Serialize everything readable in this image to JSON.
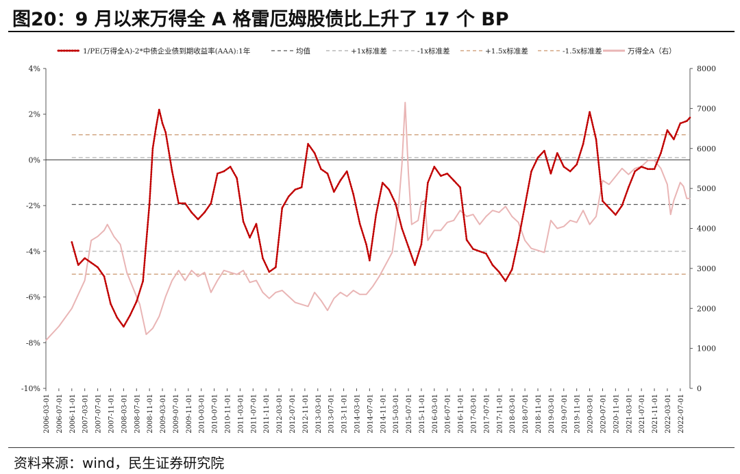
{
  "title": "图20：9 月以来万得全 A 格雷厄姆股债比上升了 17 个 BP",
  "source": "资料来源：wind，民生证券研究院",
  "chart_data": {
    "type": "line",
    "left_axis": {
      "min": -10,
      "max": 4,
      "step": 2,
      "unit": "%",
      "tick_labels": [
        "-10%",
        "-8%",
        "-6%",
        "-4%",
        "-2%",
        "0%",
        "2%",
        "4%"
      ]
    },
    "right_axis": {
      "min": 0,
      "max": 8000,
      "step": 1000,
      "tick_labels": [
        "0",
        "1000",
        "2000",
        "3000",
        "4000",
        "5000",
        "6000",
        "7000",
        "8000"
      ]
    },
    "x_range": [
      "2006-03",
      "2022-10"
    ],
    "x_tick_labels": [
      "2006-03-01",
      "2006-07-01",
      "2006-11-01",
      "2007-03-01",
      "2007-07-01",
      "2007-11-01",
      "2008-03-01",
      "2008-07-01",
      "2008-11-01",
      "2009-03-01",
      "2009-07-01",
      "2009-11-01",
      "2010-03-01",
      "2010-07-01",
      "2010-11-01",
      "2011-03-01",
      "2011-07-01",
      "2011-11-01",
      "2012-03-01",
      "2012-07-01",
      "2012-11-01",
      "2013-03-01",
      "2013-07-01",
      "2013-11-01",
      "2014-03-01",
      "2014-07-01",
      "2014-11-01",
      "2015-03-01",
      "2015-07-01",
      "2015-11-01",
      "2016-03-01",
      "2016-07-01",
      "2016-11-01",
      "2017-03-01",
      "2017-07-01",
      "2017-11-01",
      "2018-03-01",
      "2018-07-01",
      "2018-11-01",
      "2019-03-01",
      "2019-07-01",
      "2019-11-01",
      "2020-03-01",
      "2020-07-01",
      "2020-11-01",
      "2021-03-01",
      "2021-07-01",
      "2021-11-01",
      "2022-03-01",
      "2022-07-01"
    ],
    "legend": [
      {
        "label": "1/PE(万得全A)-2*中债企业债到期收益率(AAA):1年",
        "color": "#C00000",
        "style": "dotted"
      },
      {
        "label": "均值",
        "color": "#555555",
        "style": "dashed"
      },
      {
        "label": "+1x标准差",
        "color": "#A9A9A9",
        "style": "dashed"
      },
      {
        "label": "-1x标准差",
        "color": "#A9A9A9",
        "style": "dashed"
      },
      {
        "label": "+1.5x标准差",
        "color": "#C9956B",
        "style": "dashed"
      },
      {
        "label": "-1.5x标准差",
        "color": "#C9956B",
        "style": "dashed"
      },
      {
        "label": "万得全A（右）",
        "color": "#E9B5B5",
        "style": "solid"
      }
    ],
    "reference_lines": {
      "mean": -1.95,
      "plus_1sd": 0.1,
      "minus_1sd": -4.0,
      "plus_1_5sd": 1.1,
      "minus_1_5sd": -5.0
    },
    "series": [
      {
        "name": "1/PE(万得全A)-2*中债企业债到期收益率(AAA):1年",
        "axis": "left",
        "color": "#C00000",
        "points": [
          [
            "2006-11-01",
            -3.6
          ],
          [
            "2007-01-01",
            -4.6
          ],
          [
            "2007-03-01",
            -4.3
          ],
          [
            "2007-05-01",
            -4.5
          ],
          [
            "2007-07-01",
            -4.7
          ],
          [
            "2007-09-01",
            -5.1
          ],
          [
            "2007-11-01",
            -6.3
          ],
          [
            "2008-01-01",
            -6.9
          ],
          [
            "2008-03-01",
            -7.3
          ],
          [
            "2008-05-01",
            -6.8
          ],
          [
            "2008-07-01",
            -6.2
          ],
          [
            "2008-09-01",
            -5.3
          ],
          [
            "2008-11-01",
            -1.9
          ],
          [
            "2008-12-01",
            0.5
          ],
          [
            "2009-01-01",
            1.4
          ],
          [
            "2009-02-01",
            2.2
          ],
          [
            "2009-03-01",
            1.6
          ],
          [
            "2009-04-01",
            1.2
          ],
          [
            "2009-06-01",
            -0.5
          ],
          [
            "2009-08-01",
            -1.9
          ],
          [
            "2009-10-01",
            -1.9
          ],
          [
            "2009-12-01",
            -2.3
          ],
          [
            "2010-02-01",
            -2.6
          ],
          [
            "2010-04-01",
            -2.3
          ],
          [
            "2010-06-01",
            -1.9
          ],
          [
            "2010-08-01",
            -0.6
          ],
          [
            "2010-10-01",
            -0.5
          ],
          [
            "2010-12-01",
            -0.3
          ],
          [
            "2011-02-01",
            -0.8
          ],
          [
            "2011-04-01",
            -2.7
          ],
          [
            "2011-06-01",
            -3.4
          ],
          [
            "2011-08-01",
            -2.8
          ],
          [
            "2011-10-01",
            -4.3
          ],
          [
            "2011-12-01",
            -4.9
          ],
          [
            "2012-02-01",
            -4.7
          ],
          [
            "2012-04-01",
            -2.1
          ],
          [
            "2012-06-01",
            -1.6
          ],
          [
            "2012-08-01",
            -1.3
          ],
          [
            "2012-10-01",
            -1.2
          ],
          [
            "2012-12-01",
            0.7
          ],
          [
            "2013-02-01",
            0.3
          ],
          [
            "2013-04-01",
            -0.4
          ],
          [
            "2013-06-01",
            -0.6
          ],
          [
            "2013-08-01",
            -1.4
          ],
          [
            "2013-10-01",
            -0.9
          ],
          [
            "2013-12-01",
            -0.5
          ],
          [
            "2014-02-01",
            -1.5
          ],
          [
            "2014-04-01",
            -2.8
          ],
          [
            "2014-06-01",
            -3.7
          ],
          [
            "2014-07-01",
            -4.4
          ],
          [
            "2014-09-01",
            -2.4
          ],
          [
            "2014-11-01",
            -1.0
          ],
          [
            "2015-01-01",
            -1.3
          ],
          [
            "2015-03-01",
            -1.9
          ],
          [
            "2015-05-01",
            -3.0
          ],
          [
            "2015-07-01",
            -3.8
          ],
          [
            "2015-09-01",
            -4.6
          ],
          [
            "2015-11-01",
            -3.7
          ],
          [
            "2016-01-01",
            -1.0
          ],
          [
            "2016-03-01",
            -0.3
          ],
          [
            "2016-05-01",
            -0.7
          ],
          [
            "2016-07-01",
            -0.6
          ],
          [
            "2016-09-01",
            -0.9
          ],
          [
            "2016-11-01",
            -1.2
          ],
          [
            "2017-01-01",
            -3.5
          ],
          [
            "2017-03-01",
            -3.9
          ],
          [
            "2017-05-01",
            -4.0
          ],
          [
            "2017-07-01",
            -4.1
          ],
          [
            "2017-09-01",
            -4.6
          ],
          [
            "2017-11-01",
            -4.9
          ],
          [
            "2018-01-01",
            -5.3
          ],
          [
            "2018-03-01",
            -4.8
          ],
          [
            "2018-05-01",
            -3.5
          ],
          [
            "2018-07-01",
            -2.0
          ],
          [
            "2018-09-01",
            -0.5
          ],
          [
            "2018-11-01",
            0.1
          ],
          [
            "2019-01-01",
            0.4
          ],
          [
            "2019-03-01",
            -0.6
          ],
          [
            "2019-05-01",
            0.3
          ],
          [
            "2019-07-01",
            -0.3
          ],
          [
            "2019-09-01",
            -0.5
          ],
          [
            "2019-11-01",
            -0.2
          ],
          [
            "2020-01-01",
            0.7
          ],
          [
            "2020-03-01",
            2.1
          ],
          [
            "2020-05-01",
            0.9
          ],
          [
            "2020-07-01",
            -1.8
          ],
          [
            "2020-09-01",
            -2.1
          ],
          [
            "2020-11-01",
            -2.4
          ],
          [
            "2021-01-01",
            -2.0
          ],
          [
            "2021-03-01",
            -1.2
          ],
          [
            "2021-05-01",
            -0.5
          ],
          [
            "2021-07-01",
            -0.3
          ],
          [
            "2021-09-01",
            -0.4
          ],
          [
            "2021-11-01",
            -0.4
          ],
          [
            "2022-01-01",
            0.3
          ],
          [
            "2022-03-01",
            1.3
          ],
          [
            "2022-05-01",
            0.9
          ],
          [
            "2022-07-01",
            1.6
          ],
          [
            "2022-09-01",
            1.7
          ],
          [
            "2022-10-01",
            1.85
          ]
        ]
      },
      {
        "name": "万得全A（右）",
        "axis": "right",
        "color": "#E9B5B5",
        "points": [
          [
            "2006-03-01",
            1200
          ],
          [
            "2006-07-01",
            1550
          ],
          [
            "2006-11-01",
            2000
          ],
          [
            "2007-03-01",
            2700
          ],
          [
            "2007-05-01",
            3700
          ],
          [
            "2007-07-01",
            3800
          ],
          [
            "2007-09-01",
            3950
          ],
          [
            "2007-10-01",
            4100
          ],
          [
            "2007-12-01",
            3800
          ],
          [
            "2008-02-01",
            3600
          ],
          [
            "2008-04-01",
            2900
          ],
          [
            "2008-06-01",
            2500
          ],
          [
            "2008-08-01",
            2100
          ],
          [
            "2008-10-01",
            1350
          ],
          [
            "2008-12-01",
            1500
          ],
          [
            "2009-02-01",
            1800
          ],
          [
            "2009-04-01",
            2300
          ],
          [
            "2009-06-01",
            2700
          ],
          [
            "2009-08-01",
            2950
          ],
          [
            "2009-10-01",
            2700
          ],
          [
            "2009-12-01",
            2950
          ],
          [
            "2010-02-01",
            2800
          ],
          [
            "2010-04-01",
            2900
          ],
          [
            "2010-06-01",
            2400
          ],
          [
            "2010-08-01",
            2700
          ],
          [
            "2010-10-01",
            2950
          ],
          [
            "2010-12-01",
            2900
          ],
          [
            "2011-02-01",
            2850
          ],
          [
            "2011-04-01",
            2950
          ],
          [
            "2011-06-01",
            2650
          ],
          [
            "2011-08-01",
            2700
          ],
          [
            "2011-10-01",
            2400
          ],
          [
            "2011-12-01",
            2250
          ],
          [
            "2012-02-01",
            2400
          ],
          [
            "2012-04-01",
            2450
          ],
          [
            "2012-06-01",
            2300
          ],
          [
            "2012-08-01",
            2150
          ],
          [
            "2012-10-01",
            2100
          ],
          [
            "2012-12-01",
            2050
          ],
          [
            "2013-02-01",
            2400
          ],
          [
            "2013-04-01",
            2200
          ],
          [
            "2013-06-01",
            1950
          ],
          [
            "2013-08-01",
            2250
          ],
          [
            "2013-10-01",
            2400
          ],
          [
            "2013-12-01",
            2300
          ],
          [
            "2014-02-01",
            2450
          ],
          [
            "2014-04-01",
            2350
          ],
          [
            "2014-06-01",
            2350
          ],
          [
            "2014-08-01",
            2550
          ],
          [
            "2014-10-01",
            2800
          ],
          [
            "2014-12-01",
            3100
          ],
          [
            "2015-02-01",
            3400
          ],
          [
            "2015-04-01",
            4600
          ],
          [
            "2015-05-01",
            5600
          ],
          [
            "2015-06-01",
            7150
          ],
          [
            "2015-07-01",
            5400
          ],
          [
            "2015-08-01",
            4100
          ],
          [
            "2015-10-01",
            4200
          ],
          [
            "2015-11-01",
            4650
          ],
          [
            "2015-12-01",
            4700
          ],
          [
            "2016-01-01",
            3700
          ],
          [
            "2016-03-01",
            3950
          ],
          [
            "2016-05-01",
            3950
          ],
          [
            "2016-07-01",
            4150
          ],
          [
            "2016-09-01",
            4200
          ],
          [
            "2016-11-01",
            4450
          ],
          [
            "2017-01-01",
            4300
          ],
          [
            "2017-03-01",
            4350
          ],
          [
            "2017-05-01",
            4100
          ],
          [
            "2017-07-01",
            4300
          ],
          [
            "2017-09-01",
            4450
          ],
          [
            "2017-11-01",
            4400
          ],
          [
            "2018-01-01",
            4550
          ],
          [
            "2018-03-01",
            4300
          ],
          [
            "2018-05-01",
            4150
          ],
          [
            "2018-07-01",
            3700
          ],
          [
            "2018-09-01",
            3500
          ],
          [
            "2018-11-01",
            3450
          ],
          [
            "2019-01-01",
            3400
          ],
          [
            "2019-03-01",
            4200
          ],
          [
            "2019-05-01",
            4000
          ],
          [
            "2019-07-01",
            4050
          ],
          [
            "2019-09-01",
            4200
          ],
          [
            "2019-11-01",
            4150
          ],
          [
            "2020-01-01",
            4450
          ],
          [
            "2020-03-01",
            4100
          ],
          [
            "2020-05-01",
            4300
          ],
          [
            "2020-07-01",
            5200
          ],
          [
            "2020-09-01",
            5100
          ],
          [
            "2020-11-01",
            5300
          ],
          [
            "2021-01-01",
            5500
          ],
          [
            "2021-03-01",
            5350
          ],
          [
            "2021-05-01",
            5500
          ],
          [
            "2021-07-01",
            5550
          ],
          [
            "2021-09-01",
            5700
          ],
          [
            "2021-11-01",
            5700
          ],
          [
            "2022-01-01",
            5500
          ],
          [
            "2022-03-01",
            5100
          ],
          [
            "2022-04-01",
            4350
          ],
          [
            "2022-05-01",
            4700
          ],
          [
            "2022-07-01",
            5150
          ],
          [
            "2022-08-01",
            5050
          ],
          [
            "2022-09-01",
            4750
          ],
          [
            "2022-10-01",
            4750
          ]
        ]
      }
    ]
  }
}
